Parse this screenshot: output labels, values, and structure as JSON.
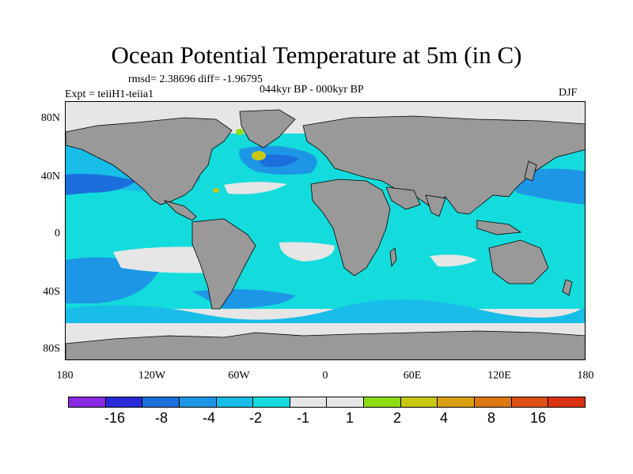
{
  "title": "Ocean Potential Temperature at 5m (in C)",
  "stats": "rmsd= 2.38696 diff= -1.96795",
  "period": "044kyr BP - 000kyr BP",
  "experiment": "Expt = teiiH1-teiia1",
  "season": "DJF",
  "colors": {
    "land": "#999999",
    "background": "#ffffff",
    "coast": "#000000"
  },
  "axes": {
    "y_labels": [
      "80N",
      "40N",
      "0",
      "40S",
      "80S"
    ],
    "x_labels": [
      "180",
      "120W",
      "60W",
      "0",
      "60E",
      "120E",
      "180"
    ]
  },
  "colorbar": {
    "colors": [
      "#8a2be2",
      "#2a2ad8",
      "#1a6fdc",
      "#1e96e6",
      "#18bde8",
      "#14dcdc",
      "#e6e6e6",
      "#e6e6e6",
      "#8cdc14",
      "#c8c814",
      "#dca014",
      "#dc7814",
      "#dc5014",
      "#dc3214"
    ],
    "labels": [
      "-16",
      "-8",
      "-4",
      "-2",
      "-1",
      "1",
      "2",
      "4",
      "8",
      "16"
    ]
  }
}
